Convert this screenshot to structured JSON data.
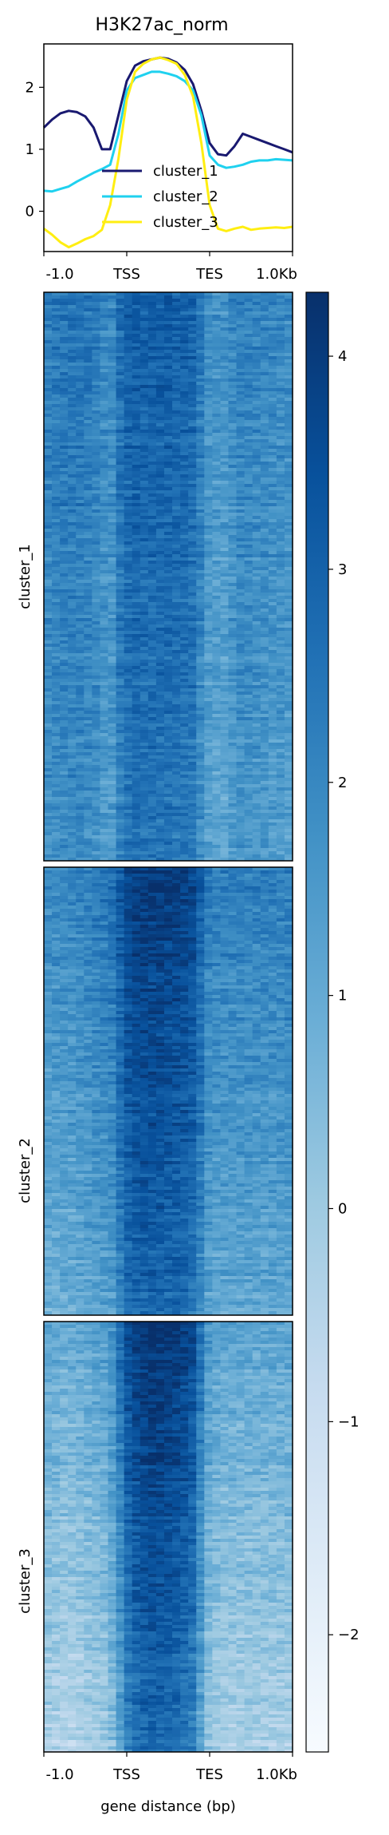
{
  "chart_data": [
    {
      "type": "line",
      "title": "H3K27ac_norm",
      "x_ticks": [
        "-1.0",
        "TSS",
        "TES",
        "1.0Kb"
      ],
      "y_ticks": [
        0,
        1,
        2
      ],
      "ylim": [
        -0.65,
        2.7
      ],
      "x_range": [
        0,
        300
      ],
      "grid": false,
      "legend_position": "center",
      "series": [
        {
          "name": "cluster_1",
          "color": "#191970",
          "x": [
            0,
            10,
            20,
            30,
            40,
            50,
            60,
            70,
            80,
            90,
            100,
            110,
            120,
            130,
            140,
            150,
            160,
            170,
            180,
            190,
            200,
            210,
            220,
            230,
            240,
            250,
            260,
            270,
            280,
            290,
            300
          ],
          "y": [
            1.35,
            1.48,
            1.58,
            1.62,
            1.6,
            1.53,
            1.35,
            1.0,
            1.0,
            1.55,
            2.1,
            2.35,
            2.42,
            2.45,
            2.48,
            2.46,
            2.4,
            2.28,
            2.05,
            1.62,
            1.1,
            0.92,
            0.9,
            1.05,
            1.25,
            1.2,
            1.15,
            1.1,
            1.05,
            1.0,
            0.95
          ]
        },
        {
          "name": "cluster_2",
          "color": "#1fd1ef",
          "x": [
            0,
            10,
            20,
            30,
            40,
            50,
            60,
            70,
            80,
            90,
            100,
            110,
            120,
            130,
            140,
            150,
            160,
            170,
            180,
            190,
            200,
            210,
            220,
            230,
            240,
            250,
            260,
            270,
            280,
            290,
            300
          ],
          "y": [
            0.33,
            0.32,
            0.36,
            0.4,
            0.48,
            0.55,
            0.62,
            0.68,
            0.75,
            1.25,
            1.95,
            2.15,
            2.2,
            2.25,
            2.25,
            2.22,
            2.18,
            2.1,
            1.95,
            1.55,
            0.9,
            0.75,
            0.7,
            0.72,
            0.75,
            0.8,
            0.82,
            0.82,
            0.84,
            0.83,
            0.82
          ]
        },
        {
          "name": "cluster_3",
          "color": "#ffee11",
          "x": [
            0,
            10,
            20,
            30,
            40,
            50,
            60,
            70,
            80,
            90,
            100,
            110,
            120,
            130,
            140,
            150,
            160,
            170,
            180,
            190,
            200,
            210,
            220,
            230,
            240,
            250,
            260,
            270,
            280,
            290,
            300
          ],
          "y": [
            -0.28,
            -0.38,
            -0.5,
            -0.58,
            -0.52,
            -0.45,
            -0.4,
            -0.3,
            0.1,
            0.85,
            1.8,
            2.25,
            2.38,
            2.45,
            2.48,
            2.44,
            2.38,
            2.2,
            1.85,
            1.1,
            0.1,
            -0.28,
            -0.32,
            -0.28,
            -0.25,
            -0.3,
            -0.28,
            -0.27,
            -0.26,
            -0.27,
            -0.25
          ]
        }
      ]
    },
    {
      "type": "heatmap",
      "x_ticks": [
        "-1.0",
        "TSS",
        "TES",
        "1.0Kb"
      ],
      "xlabel": "gene distance (bp)",
      "colormap": "Blues",
      "color_range": [
        -2.55,
        4.3
      ],
      "colorbar_ticks": [
        4,
        3,
        2,
        1,
        0,
        -1,
        -2
      ],
      "x_profile_bins": [
        0,
        1,
        2,
        3,
        4,
        5,
        6,
        7,
        8,
        9,
        10,
        11,
        12,
        13,
        14,
        15,
        16,
        17,
        18,
        19,
        20,
        21,
        22,
        23,
        24,
        25,
        26,
        27,
        28,
        29,
        30
      ],
      "clusters": [
        {
          "name": "cluster_1",
          "profile": [
            2.3,
            2.4,
            2.5,
            2.5,
            2.5,
            2.4,
            2.3,
            2.0,
            2.0,
            2.7,
            3.0,
            3.1,
            3.1,
            3.1,
            3.1,
            3.1,
            3.0,
            3.0,
            2.9,
            2.4,
            1.8,
            1.7,
            1.7,
            2.0,
            2.2,
            2.2,
            2.1,
            2.1,
            2.0,
            2.0,
            1.9
          ]
        },
        {
          "name": "cluster_2",
          "profile": [
            1.5,
            1.5,
            1.6,
            1.6,
            1.7,
            1.8,
            1.9,
            2.0,
            2.1,
            2.8,
            3.3,
            3.5,
            3.6,
            3.6,
            3.6,
            3.5,
            3.5,
            3.4,
            3.2,
            2.6,
            1.9,
            1.8,
            1.8,
            1.8,
            1.8,
            1.8,
            1.8,
            1.8,
            1.8,
            1.8,
            1.8
          ]
        },
        {
          "name": "cluster_3",
          "profile": [
            0.6,
            0.5,
            0.4,
            0.4,
            0.5,
            0.6,
            0.7,
            0.8,
            1.2,
            2.1,
            3.0,
            3.4,
            3.6,
            3.7,
            3.7,
            3.6,
            3.5,
            3.3,
            3.0,
            2.0,
            1.0,
            0.7,
            0.6,
            0.6,
            0.6,
            0.6,
            0.6,
            0.6,
            0.6,
            0.6,
            0.6
          ]
        }
      ]
    }
  ]
}
